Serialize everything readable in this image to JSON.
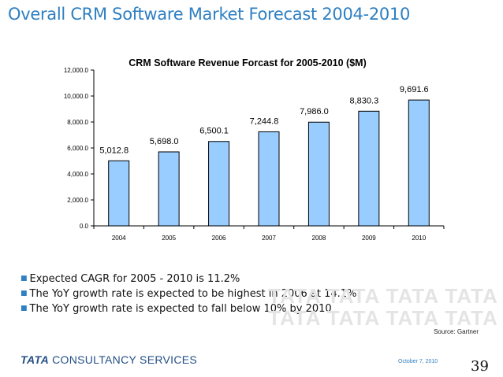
{
  "slide": {
    "title": "Overall CRM Software Market Forecast 2004-2010",
    "source": "Source: Gartner",
    "date": "October 7, 2010",
    "page_number": "39",
    "logo": {
      "brand": "TATA",
      "name": "CONSULTANCY SERVICES"
    },
    "watermark": "TATA TATA TATA TATA TATA"
  },
  "bullets": [
    "Expected CAGR for 2005 - 2010 is 11.2%",
    "The YoY growth rate is expected to be highest in 2006 at 14.1%",
    "The YoY growth rate is expected to fall below 10%  by 2010"
  ],
  "chart_data": {
    "type": "bar",
    "title": "CRM Software Revenue Forcast for 2005-2010 ($M)",
    "categories": [
      "2004",
      "2005",
      "2006",
      "2007",
      "2008",
      "2009",
      "2010"
    ],
    "values": [
      5012.8,
      5698.0,
      6500.1,
      7244.8,
      7986.0,
      8830.3,
      9691.6
    ],
    "value_labels": [
      "5,012.8",
      "5,698.0",
      "6,500.1",
      "7,244.8",
      "7,986.0",
      "8,830.3",
      "9,691.6"
    ],
    "ylim": [
      0,
      12000
    ],
    "yticks": [
      0,
      2000,
      4000,
      6000,
      8000,
      10000,
      12000
    ],
    "ytick_labels": [
      "0.0",
      "2,000.0",
      "4,000.0",
      "6,000.0",
      "8,000.0",
      "10,000.0",
      "12,000.0"
    ],
    "bar_color": "#99ccff",
    "bar_stroke": "#000000",
    "grid": false,
    "legend": "none"
  },
  "colors": {
    "title": "#2f7fc1",
    "logo": "#244f86"
  }
}
